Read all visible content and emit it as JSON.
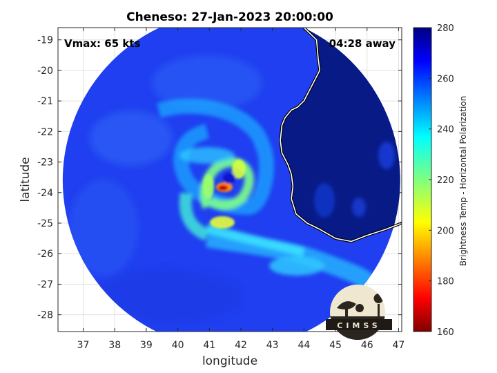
{
  "figure": {
    "title": "Cheneso: 27-Jan-2023 20:00:00",
    "vmax_label": "Vmax: 65 kts",
    "away_label": "04:28 away",
    "logo_text": "CIMSS"
  },
  "chart_data": {
    "type": "heatmap",
    "title": "Cheneso: 27-Jan-2023 20:00:00",
    "xlabel": "longitude",
    "ylabel": "latitude",
    "xlim": [
      36.2,
      47.1
    ],
    "ylim": [
      -28.55,
      -18.6
    ],
    "x_ticks": [
      37,
      38,
      39,
      40,
      41,
      42,
      43,
      44,
      45,
      46,
      47
    ],
    "y_ticks": [
      -19,
      -20,
      -21,
      -22,
      -23,
      -24,
      -25,
      -26,
      -27,
      -28
    ],
    "grid": true,
    "swath": {
      "center": [
        41.7,
        -23.6
      ],
      "radius_deg": 5.35
    },
    "storm_center": [
      41.55,
      -23.75
    ],
    "colorbar": {
      "label": "Brightness Temp - Horizontal Polarization",
      "range": [
        160,
        280
      ],
      "ticks": [
        160,
        180,
        200,
        220,
        240,
        260,
        280
      ],
      "colormap": "jet"
    },
    "coastline": [
      [
        44.0,
        -18.6
      ],
      [
        44.4,
        -19.0
      ],
      [
        44.45,
        -19.6
      ],
      [
        44.5,
        -20.0
      ],
      [
        44.3,
        -20.4
      ],
      [
        44.15,
        -20.7
      ],
      [
        44.0,
        -21.0
      ],
      [
        43.8,
        -21.2
      ],
      [
        43.6,
        -21.3
      ],
      [
        43.4,
        -21.55
      ],
      [
        43.3,
        -21.8
      ],
      [
        43.25,
        -22.3
      ],
      [
        43.3,
        -22.7
      ],
      [
        43.5,
        -23.1
      ],
      [
        43.6,
        -23.4
      ],
      [
        43.65,
        -23.8
      ],
      [
        43.6,
        -24.2
      ],
      [
        43.75,
        -24.7
      ],
      [
        44.1,
        -25.0
      ],
      [
        44.5,
        -25.2
      ],
      [
        45.0,
        -25.5
      ],
      [
        45.5,
        -25.6
      ],
      [
        46.0,
        -25.4
      ],
      [
        46.6,
        -25.2
      ],
      [
        47.1,
        -25.0
      ]
    ]
  }
}
